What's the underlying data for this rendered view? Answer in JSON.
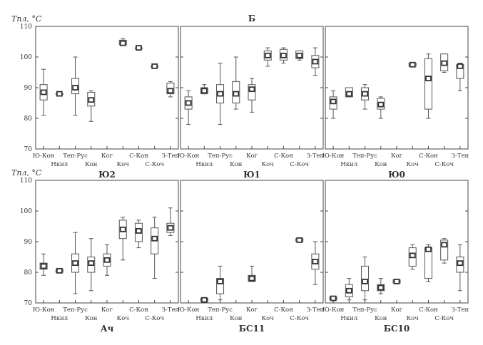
{
  "figure": {
    "ylabel": "Tпл, °C",
    "categories": [
      "Ю-Кон",
      "Нкил",
      "Теп-Рус",
      "Кон",
      "Ког",
      "Коч",
      "С-Кон",
      "С-Коч",
      "З-Теп"
    ]
  },
  "chart_data": [
    {
      "type": "box",
      "title": "Ю2",
      "ylim": [
        70,
        110
      ],
      "yticks": [
        70,
        80,
        90,
        100,
        110
      ],
      "boxes": [
        {
          "category": "Ю-Кон",
          "min": 81,
          "q1": 86,
          "median": 88.5,
          "q3": 91,
          "max": 96
        },
        {
          "category": "Нкил",
          "min": 88,
          "q1": 88,
          "median": 88,
          "q3": 88,
          "max": 88
        },
        {
          "category": "Теп-Рус",
          "min": 81,
          "q1": 88,
          "median": 90,
          "q3": 93,
          "max": 100
        },
        {
          "category": "Кон",
          "min": 79,
          "q1": 84,
          "median": 86,
          "q3": 88.5,
          "max": 89
        },
        {
          "category": "Коч",
          "min": 104,
          "q1": 104,
          "median": 104.5,
          "q3": 105.5,
          "max": 106
        },
        {
          "category": "С-Кон",
          "min": 103,
          "q1": 103,
          "median": 103,
          "q3": 103,
          "max": 103
        },
        {
          "category": "С-Коч",
          "min": 97,
          "q1": 97,
          "median": 97,
          "q3": 97,
          "max": 97
        },
        {
          "category": "З-Теп",
          "min": 87,
          "q1": 88,
          "median": 89,
          "q3": 91.5,
          "max": 92
        }
      ]
    },
    {
      "type": "box",
      "title": "Ю1",
      "panel_header": "Б",
      "ylim": [
        70,
        110
      ],
      "yticks": [
        70,
        80,
        90,
        100,
        110
      ],
      "boxes": [
        {
          "category": "Ю-Кон",
          "min": 78,
          "q1": 83,
          "median": 85,
          "q3": 87,
          "max": 89
        },
        {
          "category": "Нкил",
          "min": 88,
          "q1": 88,
          "median": 89,
          "q3": 90,
          "max": 91
        },
        {
          "category": "Теп-Рус",
          "min": 78,
          "q1": 85,
          "median": 88,
          "q3": 91,
          "max": 98
        },
        {
          "category": "Кон",
          "min": 83,
          "q1": 85,
          "median": 88,
          "q3": 92,
          "max": 100
        },
        {
          "category": "Ког",
          "min": 82,
          "q1": 86,
          "median": 89.5,
          "q3": 91,
          "max": 93
        },
        {
          "category": "Коч",
          "min": 97,
          "q1": 99,
          "median": 100.5,
          "q3": 102,
          "max": 103
        },
        {
          "category": "С-Кон",
          "min": 98,
          "q1": 99,
          "median": 100.5,
          "q3": 102.5,
          "max": 103
        },
        {
          "category": "С-Коч",
          "min": 99,
          "q1": 99.5,
          "median": 100.5,
          "q3": 102,
          "max": 102
        },
        {
          "category": "З-Теп",
          "min": 94,
          "q1": 96.5,
          "median": 98.5,
          "q3": 100.5,
          "max": 103
        }
      ]
    },
    {
      "type": "box",
      "title": "Ю0",
      "ylim": [
        70,
        110
      ],
      "yticks": [
        70,
        80,
        90,
        100,
        110
      ],
      "boxes": [
        {
          "category": "Ю-Кон",
          "min": 80,
          "q1": 83,
          "median": 85.5,
          "q3": 87,
          "max": 89
        },
        {
          "category": "Нкил",
          "min": 87,
          "q1": 87,
          "median": 88,
          "q3": 90,
          "max": 90
        },
        {
          "category": "Теп-Рус",
          "min": 83,
          "q1": 86,
          "median": 88,
          "q3": 90,
          "max": 91
        },
        {
          "category": "Кон",
          "min": 80,
          "q1": 83,
          "median": 84.5,
          "q3": 86.5,
          "max": 87
        },
        {
          "category": "Коч",
          "min": 97,
          "q1": 97,
          "median": 97.5,
          "q3": 98,
          "max": 98
        },
        {
          "category": "С-Кон",
          "min": 80,
          "q1": 83,
          "median": 93,
          "q3": 99.5,
          "max": 101
        },
        {
          "category": "С-Коч",
          "min": 95,
          "q1": 95.5,
          "median": 98,
          "q3": 101,
          "max": 101
        },
        {
          "category": "З-Теп",
          "min": 89,
          "q1": 93,
          "median": 97,
          "q3": 97.5,
          "max": 98
        }
      ]
    },
    {
      "type": "box",
      "title": "Ач",
      "ylim": [
        70,
        110
      ],
      "yticks": [
        70,
        80,
        90,
        100,
        110
      ],
      "boxes": [
        {
          "category": "Ю-Кон",
          "min": 79,
          "q1": 81,
          "median": 82,
          "q3": 83,
          "max": 86
        },
        {
          "category": "Нкил",
          "min": 80,
          "q1": 80,
          "median": 80.5,
          "q3": 81,
          "max": 81
        },
        {
          "category": "Теп-Рус",
          "min": 73,
          "q1": 80,
          "median": 83,
          "q3": 86,
          "max": 93
        },
        {
          "category": "Кон",
          "min": 74,
          "q1": 80,
          "median": 83,
          "q3": 85,
          "max": 91
        },
        {
          "category": "Ког",
          "min": 79,
          "q1": 82,
          "median": 84,
          "q3": 86,
          "max": 89
        },
        {
          "category": "Коч",
          "min": 84,
          "q1": 91,
          "median": 94,
          "q3": 97,
          "max": 98
        },
        {
          "category": "С-Кон",
          "min": 88,
          "q1": 90,
          "median": 93.5,
          "q3": 96,
          "max": 97
        },
        {
          "category": "С-Коч",
          "min": 78,
          "q1": 86,
          "median": 91,
          "q3": 94.5,
          "max": 98
        },
        {
          "category": "З-Теп",
          "min": 92,
          "q1": 93,
          "median": 94.5,
          "q3": 96,
          "max": 101
        }
      ]
    },
    {
      "type": "box",
      "title": "БС11",
      "ylim": [
        70,
        110
      ],
      "yticks": [
        70,
        80,
        90,
        100,
        110
      ],
      "boxes": [
        {
          "category": "Нкил",
          "min": 70.5,
          "q1": 70.5,
          "median": 71,
          "q3": 71.5,
          "max": 71.5
        },
        {
          "category": "Теп-Рус",
          "min": 71,
          "q1": 73,
          "median": 77,
          "q3": 78,
          "max": 82
        },
        {
          "category": "Ког",
          "min": 77,
          "q1": 77,
          "median": 78,
          "q3": 79,
          "max": 82
        },
        {
          "category": "С-Коч",
          "min": 90,
          "q1": 90,
          "median": 90.5,
          "q3": 91,
          "max": 91
        },
        {
          "category": "З-Теп",
          "min": 76,
          "q1": 81,
          "median": 83.5,
          "q3": 86,
          "max": 90
        }
      ]
    },
    {
      "type": "box",
      "title": "БС10",
      "ylim": [
        70,
        110
      ],
      "yticks": [
        70,
        80,
        90,
        100,
        110
      ],
      "boxes": [
        {
          "category": "Ю-Кон",
          "min": 71,
          "q1": 71,
          "median": 71.5,
          "q3": 72,
          "max": 72
        },
        {
          "category": "Нкил",
          "min": 71,
          "q1": 72,
          "median": 74,
          "q3": 76,
          "max": 78
        },
        {
          "category": "Теп-Рус",
          "min": 71,
          "q1": 74,
          "median": 77,
          "q3": 82,
          "max": 85
        },
        {
          "category": "Кон",
          "min": 73,
          "q1": 74,
          "median": 75,
          "q3": 76,
          "max": 78
        },
        {
          "category": "Ког",
          "min": 76.5,
          "q1": 76.5,
          "median": 77,
          "q3": 77.5,
          "max": 77.5
        },
        {
          "category": "Коч",
          "min": 81,
          "q1": 82,
          "median": 85.5,
          "q3": 88,
          "max": 89
        },
        {
          "category": "С-Кон",
          "min": 77,
          "q1": 78,
          "median": 87.5,
          "q3": 88,
          "max": 89
        },
        {
          "category": "С-Коч",
          "min": 83,
          "q1": 84,
          "median": 89,
          "q3": 90.5,
          "max": 91
        },
        {
          "category": "З-Теп",
          "min": 74,
          "q1": 80,
          "median": 83,
          "q3": 85,
          "max": 89
        }
      ]
    }
  ]
}
